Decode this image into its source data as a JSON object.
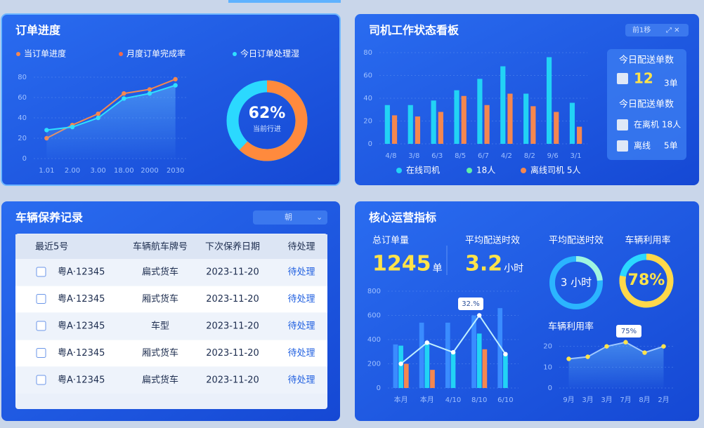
{
  "panels": {
    "order": {
      "title": "订单进度",
      "legend": [
        {
          "name": "当订单进度",
          "color": "#f5874f"
        },
        {
          "name": "月度订单完成率",
          "color": "#f26a4b"
        },
        {
          "name": "今日订单处理湿",
          "color": "#2fe0ff"
        }
      ]
    },
    "driver": {
      "title": "司机工作状态看板",
      "tool": "前1移",
      "extra_legend": {
        "name": "18人",
        "color": "#5ef0a8"
      },
      "card": {
        "title": "今日配送单数",
        "count": 12,
        "count_unit": "3单",
        "subtitle": "今日配送单数",
        "rows": [
          {
            "label": "在离机 18人"
          },
          {
            "label": "离线",
            "value": "5单"
          }
        ]
      }
    },
    "maintenance": {
      "title": "车辆保养记录",
      "filter": "朝",
      "table": {
        "header": [
          "最近5号",
          "车辆航车牌号",
          "下次保养日期",
          "待处理"
        ],
        "rows": [
          [
            "粤A·12345",
            "扁式货车",
            "2023-11-20",
            "待处理"
          ],
          [
            "粤A·12345",
            "厢式货车",
            "2023-11-20",
            "待处理"
          ],
          [
            "粤A·12345",
            "车型",
            "2023-11-20",
            "待处理"
          ],
          [
            "粤A·12345",
            "厢式货车",
            "2023-11-20",
            "待处理"
          ],
          [
            "粤A·12345",
            "扁式货车",
            "2023-11-20",
            "待处理"
          ]
        ]
      }
    },
    "core": {
      "title": "核心运营指标",
      "kpis": [
        {
          "label": "总订单量",
          "value": 1245,
          "unit": "单"
        },
        {
          "label": "平均配送时效",
          "value": 3.2,
          "unit": "小时"
        }
      ],
      "ring_title": "平均配送时效",
      "ring_text": "3 小时",
      "util_title": "车辆利用率",
      "trend_title": "车辆利用率"
    }
  },
  "chart_data": [
    {
      "type": "line",
      "categories": [
        "1.01",
        "2.00",
        "3.00",
        "18.00",
        "2000",
        "2030"
      ],
      "series": [
        {
          "color": "#f5874f",
          "values": [
            20,
            33,
            44,
            64,
            68,
            78
          ]
        },
        {
          "color": "#2fe0ff",
          "values": [
            28,
            31,
            40,
            59,
            64,
            72
          ]
        }
      ],
      "ylim": [
        0,
        80
      ],
      "yticks": [
        0,
        20,
        40,
        60,
        80
      ],
      "grid": true,
      "area": true
    },
    {
      "type": "gauge",
      "value": 62,
      "value_label": "62%",
      "caption": "当前行进",
      "ylim": [
        0,
        100
      ],
      "color": "#ff8a3d"
    },
    {
      "type": "bar",
      "categories": [
        "4/8",
        "3/8",
        "6/3",
        "8/5",
        "6/7",
        "4/2",
        "8/2",
        "9/6",
        "3/1"
      ],
      "series": [
        {
          "name": "在线司机",
          "color": "#22d3f5",
          "values": [
            34,
            34,
            38,
            47,
            57,
            68,
            44,
            76,
            36
          ]
        },
        {
          "name": "离线司机 5人",
          "color": "#f5874f",
          "values": [
            25,
            24,
            28,
            42,
            34,
            44,
            33,
            28,
            15
          ]
        }
      ],
      "ylim": [
        0,
        80
      ],
      "yticks": [
        0,
        20,
        40,
        60,
        80
      ],
      "grid": true
    },
    {
      "type": "combo",
      "categories": [
        "本月",
        "本月",
        "4/10",
        "8/10",
        "6/10"
      ],
      "series": [
        {
          "color": "#3a8cff",
          "values": [
            360,
            540,
            540,
            600,
            660
          ]
        },
        {
          "color": "#22d3f5",
          "values": [
            350,
            380,
            300,
            450,
            280
          ]
        },
        {
          "color": "#f5874f",
          "values": [
            200,
            150,
            null,
            320,
            null
          ]
        },
        {
          "color": "#bfefff",
          "kind": "line",
          "values": [
            200,
            375,
            295,
            600,
            280
          ]
        }
      ],
      "ylim": [
        0,
        800
      ],
      "yticks": [
        0,
        200,
        400,
        600,
        800
      ],
      "grid": true,
      "annotation": "32.%"
    },
    {
      "type": "gauge",
      "value": 78,
      "value_label": "78%",
      "ylim": [
        0,
        100
      ],
      "color": "#ffd84a"
    },
    {
      "type": "area",
      "categories": [
        "9月",
        "3月",
        "3月",
        "7月",
        "8月",
        "2月"
      ],
      "series": [
        {
          "color": "#9fc8ff",
          "values": [
            14,
            15,
            20,
            22,
            17,
            20
          ]
        }
      ],
      "ylim": [
        0,
        30
      ],
      "yticks": [
        0,
        10,
        20
      ],
      "grid": true,
      "annotation": "75%"
    }
  ]
}
